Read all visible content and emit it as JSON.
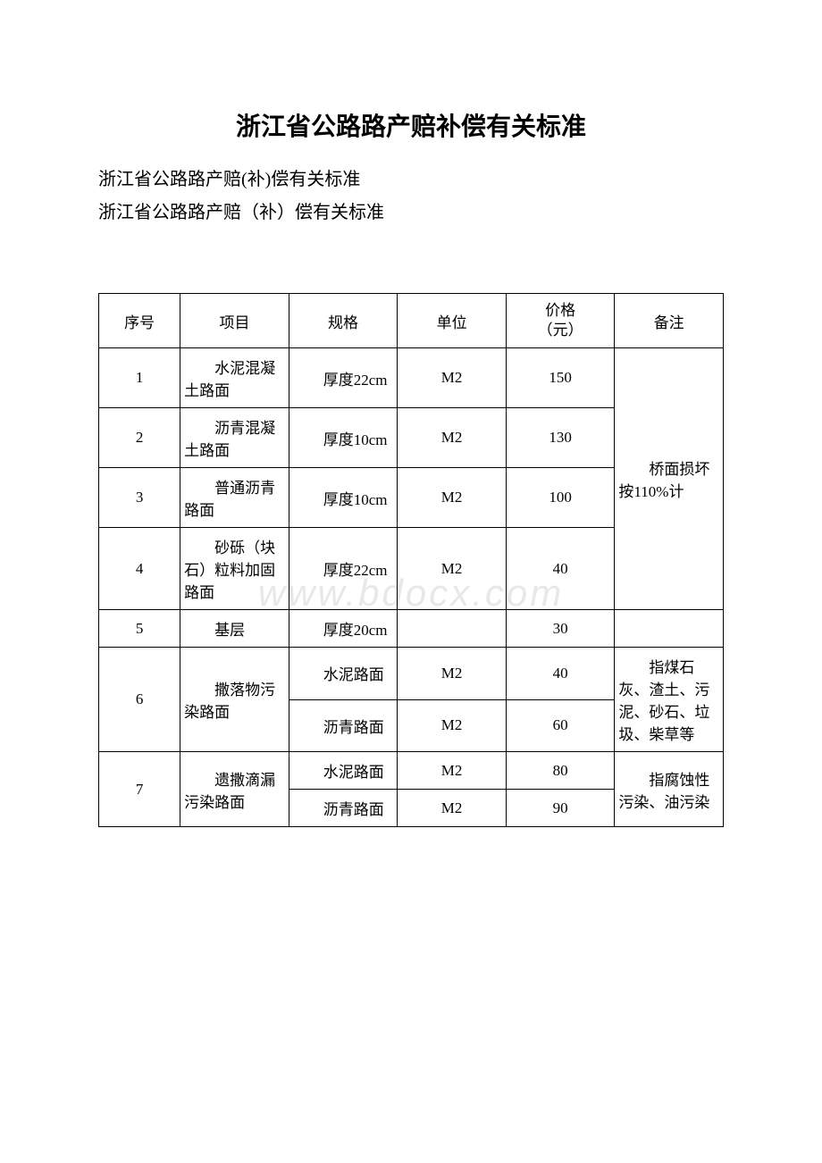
{
  "document": {
    "title": "浙江省公路路产赔补偿有关标准",
    "subtitle1": "浙江省公路路产赔(补)偿有关标准",
    "subtitle2": "浙江省公路路产赔（补）偿有关标准",
    "watermark": "www.bdocx.com"
  },
  "table": {
    "headers": {
      "seq": "序号",
      "item": "项目",
      "spec": "规格",
      "unit": "单位",
      "price_line1": "价格",
      "price_line2": "（元）",
      "note": "备注"
    },
    "rows": [
      {
        "seq": "1",
        "item": "水泥混凝土路面",
        "spec": "厚度22cm",
        "unit": "M2",
        "price": "150"
      },
      {
        "seq": "2",
        "item": "沥青混凝土路面",
        "spec": "厚度10cm",
        "unit": "M2",
        "price": "130"
      },
      {
        "seq": "3",
        "item": "普通沥青路面",
        "spec": "厚度10cm",
        "unit": "M2",
        "price": "100"
      },
      {
        "seq": "4",
        "item": "砂砾（块石）粒料加固路面",
        "spec": "厚度22cm",
        "unit": "M2",
        "price": "40"
      },
      {
        "seq": "5",
        "item": "基层",
        "spec": "厚度20cm",
        "unit": "",
        "price": "30",
        "note": ""
      },
      {
        "seq": "6",
        "item": "撒落物污染路面",
        "sub": [
          {
            "spec": "水泥路面",
            "unit": "M2",
            "price": "40"
          },
          {
            "spec": "沥青路面",
            "unit": "M2",
            "price": "60"
          }
        ],
        "note": "指煤石灰、渣土、污泥、砂石、垃圾、柴草等"
      },
      {
        "seq": "7",
        "item": "遗撒滴漏污染路面",
        "sub": [
          {
            "spec": "水泥路面",
            "unit": "M2",
            "price": "80"
          },
          {
            "spec": "沥青路面",
            "unit": "M2",
            "price": "90"
          }
        ],
        "note": "指腐蚀性污染、油污染"
      }
    ],
    "merged_note_1_4": "桥面损坏按110%计"
  },
  "styles": {
    "background_color": "#ffffff",
    "border_color": "#000000",
    "text_color": "#000000",
    "watermark_color": "#e8e8e8",
    "title_fontsize": 28,
    "body_fontsize": 17,
    "subtitle_fontsize": 20
  }
}
